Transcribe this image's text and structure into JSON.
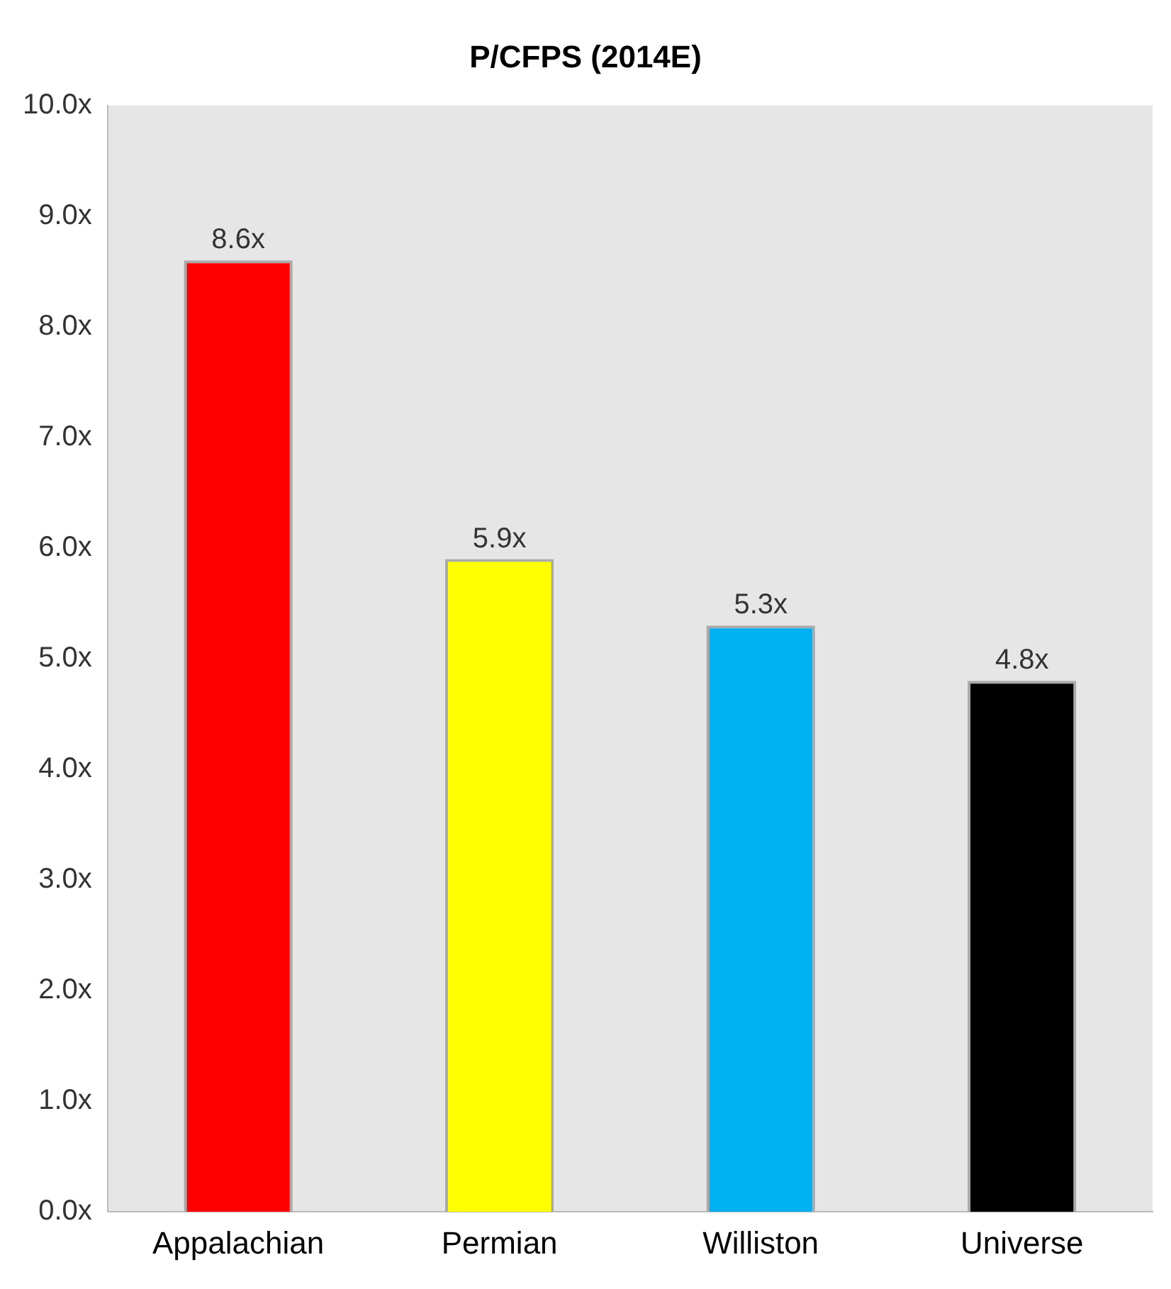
{
  "chart_data": {
    "type": "bar",
    "title": "P/CFPS (2014E)",
    "categories": [
      "Appalachian",
      "Permian",
      "Williston",
      "Universe"
    ],
    "values": [
      8.6,
      5.9,
      5.3,
      4.8
    ],
    "colors": [
      "#ff0000",
      "#ffff00",
      "#00b0f0",
      "#000000"
    ],
    "value_labels": [
      "8.6x",
      "5.9x",
      "5.3x",
      "4.8x"
    ],
    "ylim": [
      0,
      10
    ],
    "yticks": [
      {
        "value": 0,
        "label": "0.0x"
      },
      {
        "value": 1,
        "label": "1.0x"
      },
      {
        "value": 2,
        "label": "2.0x"
      },
      {
        "value": 3,
        "label": "3.0x"
      },
      {
        "value": 4,
        "label": "4.0x"
      },
      {
        "value": 5,
        "label": "5.0x"
      },
      {
        "value": 6,
        "label": "6.0x"
      },
      {
        "value": 7,
        "label": "7.0x"
      },
      {
        "value": 8,
        "label": "8.0x"
      },
      {
        "value": 9,
        "label": "9.0x"
      },
      {
        "value": 10,
        "label": "10.0x"
      }
    ],
    "grid": false,
    "legend": false
  }
}
